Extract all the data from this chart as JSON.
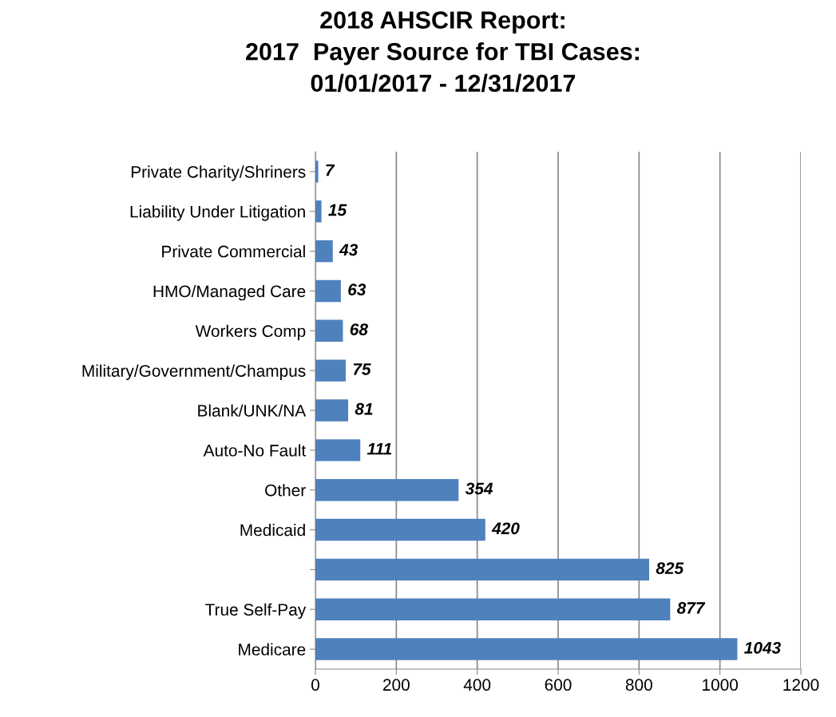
{
  "chart_data": {
    "type": "bar",
    "orientation": "horizontal",
    "title": "2018 AHSCIR Report:\n2017  Payer Source for TBI Cases:\n01/01/2017 - 12/31/2017",
    "categories": [
      "Private Charity/Shriners",
      "Liability Under Litigation",
      "Private Commercial",
      "HMO/Managed Care",
      "Workers Comp",
      "Military/Government/Champus",
      "Blank/UNK/NA",
      "Auto-No Fault",
      "Other",
      "Medicaid",
      null,
      "True Self-Pay",
      "Medicare"
    ],
    "values": [
      7,
      15,
      43,
      63,
      68,
      75,
      81,
      111,
      354,
      420,
      825,
      877,
      1043
    ],
    "color": "#4f81bd",
    "xlim": [
      0,
      1200
    ],
    "xticks": [
      0,
      200,
      400,
      600,
      800,
      1000,
      1200
    ],
    "grid": "x",
    "data_labels": true
  }
}
